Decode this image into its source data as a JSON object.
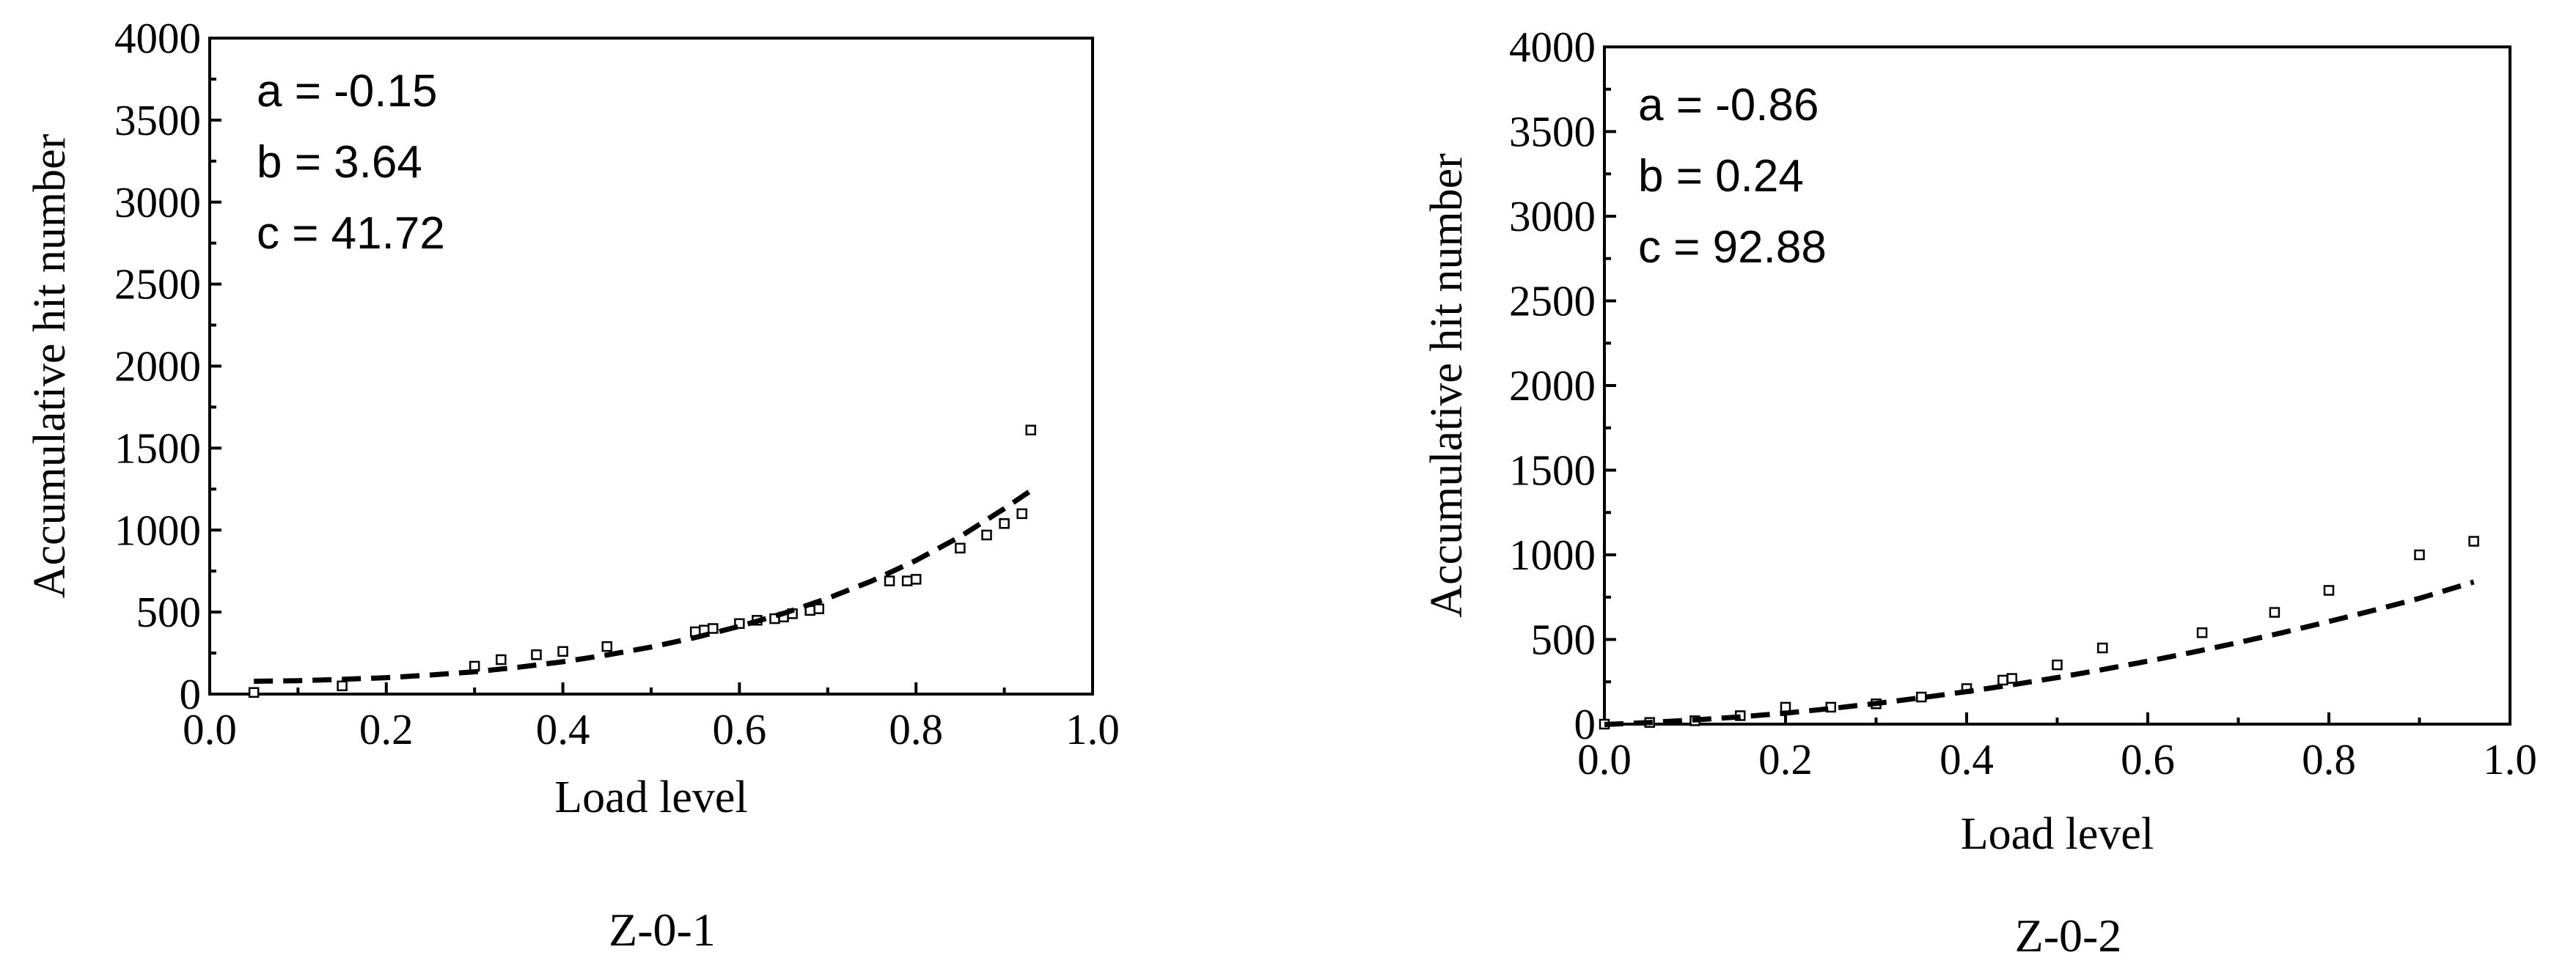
{
  "chart_data": [
    {
      "type": "scatter",
      "caption": "Z-0-1",
      "xlabel": "Load level",
      "ylabel": "Accumulative hit number",
      "xlim": [
        0.0,
        1.0
      ],
      "ylim": [
        0,
        4000
      ],
      "xticks": [
        "0.0",
        "0.2",
        "0.4",
        "0.6",
        "0.8",
        "1.0"
      ],
      "yticks": [
        "0",
        "500",
        "1000",
        "1500",
        "2000",
        "2500",
        "3000",
        "3500",
        "4000"
      ],
      "annotations": [
        "a = -0.15",
        "b = 3.64",
        "c = 41.72"
      ],
      "grid": false,
      "series": [
        {
          "kind": "measured",
          "marker": "open-square",
          "x": [
            0.05,
            0.15,
            0.3,
            0.33,
            0.37,
            0.4,
            0.45,
            0.55,
            0.56,
            0.57,
            0.6,
            0.62,
            0.64,
            0.65,
            0.66,
            0.68,
            0.69,
            0.77,
            0.79,
            0.8,
            0.85,
            0.88,
            0.9,
            0.92,
            0.93
          ],
          "y": [
            10,
            50,
            170,
            210,
            240,
            260,
            290,
            380,
            390,
            400,
            430,
            450,
            460,
            470,
            490,
            510,
            520,
            690,
            690,
            700,
            890,
            970,
            1040,
            1100,
            1610
          ]
        },
        {
          "kind": "fit",
          "line": "dashed",
          "x": [
            0.05,
            0.1,
            0.15,
            0.2,
            0.25,
            0.3,
            0.35,
            0.4,
            0.45,
            0.5,
            0.55,
            0.6,
            0.65,
            0.7,
            0.75,
            0.8,
            0.85,
            0.9,
            0.93
          ],
          "y": [
            78,
            82,
            90,
            100,
            116,
            136,
            164,
            197,
            238,
            287,
            345,
            413,
            492,
            584,
            690,
            815,
            960,
            1131,
            1240
          ]
        }
      ]
    },
    {
      "type": "scatter",
      "caption": "Z-0-2",
      "xlabel": "Load level",
      "ylabel": "Accumulative hit number",
      "xlim": [
        0.0,
        1.0
      ],
      "ylim": [
        0,
        4000
      ],
      "xticks": [
        "0.0",
        "0.2",
        "0.4",
        "0.6",
        "0.8",
        "1.0"
      ],
      "yticks": [
        "0",
        "500",
        "1000",
        "1500",
        "2000",
        "2500",
        "3000",
        "3500",
        "4000"
      ],
      "annotations": [
        "a = -0.86",
        "b = 0.24",
        "c = 92.88"
      ],
      "grid": false,
      "series": [
        {
          "kind": "measured",
          "marker": "open-square",
          "x": [
            0.0,
            0.05,
            0.1,
            0.15,
            0.2,
            0.25,
            0.3,
            0.35,
            0.4,
            0.44,
            0.45,
            0.5,
            0.55,
            0.66,
            0.74,
            0.8,
            0.9,
            0.96
          ],
          "y": [
            0,
            10,
            20,
            50,
            100,
            100,
            120,
            160,
            210,
            260,
            270,
            350,
            450,
            540,
            660,
            790,
            1000,
            1080
          ]
        },
        {
          "kind": "fit",
          "line": "dashed",
          "x": [
            0.0,
            0.05,
            0.1,
            0.15,
            0.2,
            0.25,
            0.3,
            0.35,
            0.4,
            0.45,
            0.5,
            0.55,
            0.6,
            0.65,
            0.7,
            0.75,
            0.8,
            0.85,
            0.9,
            0.96
          ],
          "y": [
            -2,
            10,
            25,
            43,
            65,
            92,
            122,
            156,
            192,
            232,
            275,
            322,
            372,
            425,
            482,
            542,
            606,
            673,
            743,
            840
          ]
        }
      ]
    }
  ]
}
